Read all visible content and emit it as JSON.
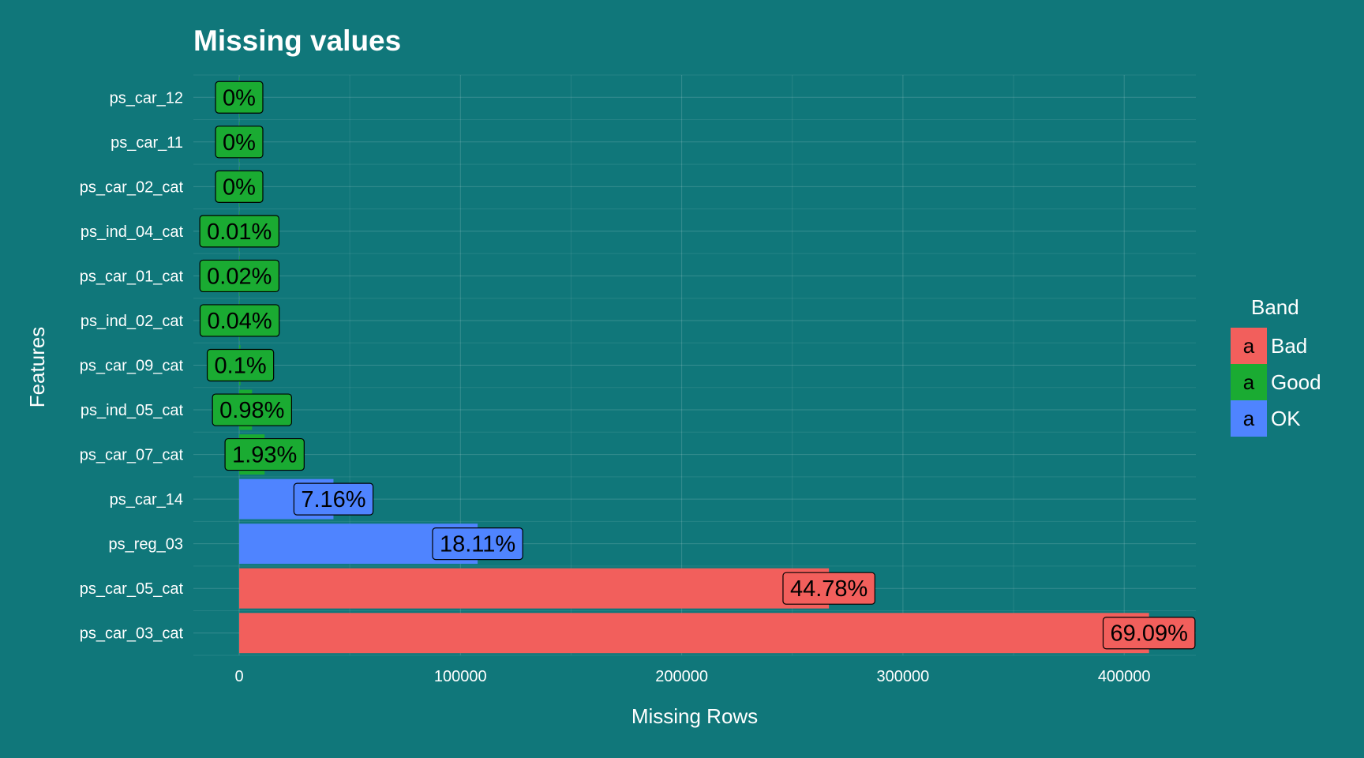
{
  "chart_data": {
    "type": "bar",
    "orientation": "horizontal",
    "title": "Missing values",
    "xlabel": "Missing Rows",
    "ylabel": "Features",
    "xlim": [
      -18000,
      432000
    ],
    "xticks": [
      0,
      100000,
      200000,
      300000,
      400000
    ],
    "xtick_labels": [
      "0",
      "100000",
      "200000",
      "300000",
      "400000"
    ],
    "grid": true,
    "legend": {
      "title": "Band",
      "placement": "right",
      "key_glyph": "a",
      "entries": [
        {
          "name": "Bad",
          "color": "#f25f5c"
        },
        {
          "name": "Good",
          "color": "#1aab32"
        },
        {
          "name": "OK",
          "color": "#4f84ff"
        }
      ]
    },
    "categories": [
      "ps_car_12",
      "ps_car_11",
      "ps_car_02_cat",
      "ps_ind_04_cat",
      "ps_car_01_cat",
      "ps_ind_02_cat",
      "ps_car_09_cat",
      "ps_ind_05_cat",
      "ps_car_07_cat",
      "ps_car_14",
      "ps_reg_03",
      "ps_car_05_cat",
      "ps_car_03_cat"
    ],
    "values": [
      1,
      5,
      5,
      83,
      107,
      216,
      569,
      5809,
      11489,
      42620,
      107772,
      266551,
      411231
    ],
    "labels": [
      "0%",
      "0%",
      "0%",
      "0.01%",
      "0.02%",
      "0.04%",
      "0.1%",
      "0.98%",
      "1.93%",
      "7.16%",
      "18.11%",
      "44.78%",
      "69.09%"
    ],
    "bands": [
      "Good",
      "Good",
      "Good",
      "Good",
      "Good",
      "Good",
      "Good",
      "Good",
      "Good",
      "OK",
      "OK",
      "Bad",
      "Bad"
    ]
  }
}
